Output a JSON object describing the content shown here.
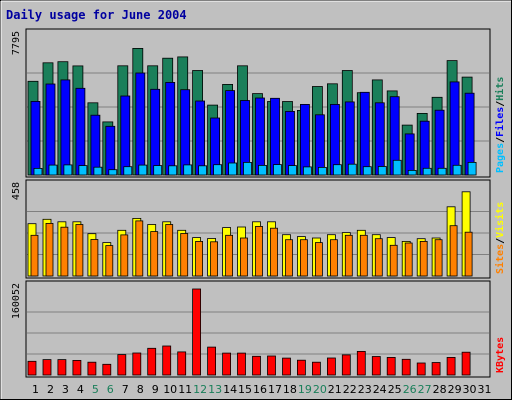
{
  "chart_data": {
    "type": "bar",
    "title": "Daily usage for June 2004",
    "x": [
      "1",
      "2",
      "3",
      "4",
      "5",
      "6",
      "7",
      "8",
      "9",
      "10",
      "11",
      "12",
      "13",
      "14",
      "15",
      "16",
      "17",
      "18",
      "19",
      "20",
      "21",
      "22",
      "23",
      "24",
      "25",
      "26",
      "27",
      "28",
      "29",
      "30",
      "31"
    ],
    "weekend_days": [
      "5",
      "6",
      "12",
      "13",
      "19",
      "20",
      "26",
      "27"
    ],
    "panels": [
      {
        "id": "top",
        "max_label": "7795",
        "ylim": [
          0,
          7795
        ],
        "series": [
          {
            "name": "Hits",
            "color": "#1a7f5a",
            "values": [
              5290,
              6340,
              6400,
              6160,
              4080,
              3000,
              6170,
              7150,
              6170,
              6600,
              6670,
              5900,
              3950,
              5120,
              6170,
              4600,
              4150,
              4150,
              3650,
              5000,
              5150,
              5900,
              4650,
              5370,
              4750,
              2820,
              3480,
              4390,
              6460,
              5530,
              0
            ]
          },
          {
            "name": "Files",
            "color": "#0000ff",
            "values": [
              4160,
              5140,
              5370,
              4900,
              3380,
              2750,
              4460,
              5760,
              4840,
              5230,
              4820,
              4180,
              3220,
              4770,
              4210,
              4350,
              4330,
              3590,
              3990,
              3400,
              3990,
              4130,
              4670,
              4080,
              4420,
              2320,
              3040,
              3660,
              5260,
              4620,
              0
            ]
          },
          {
            "name": "Pages",
            "color": "#00bfff",
            "values": [
              370,
              560,
              570,
              530,
              440,
              300,
              470,
              560,
              530,
              520,
              570,
              520,
              580,
              680,
              710,
              540,
              590,
              530,
              460,
              430,
              580,
              610,
              470,
              480,
              830,
              260,
              380,
              380,
              550,
              710,
              0
            ]
          }
        ]
      },
      {
        "id": "middle",
        "max_label": "458",
        "ylim": [
          0,
          458
        ],
        "series": [
          {
            "name": "Visits",
            "color": "#ffff00",
            "values": [
              272,
              295,
              282,
              282,
              220,
              174,
              238,
              300,
              268,
              282,
              238,
              200,
              195,
              252,
              255,
              282,
              282,
              215,
              205,
              198,
              215,
              226,
              238,
              215,
              200,
              180,
              194,
              198,
              360,
              438,
              0
            ]
          },
          {
            "name": "Sites",
            "color": "#ff8000",
            "values": [
              212,
              274,
              254,
              268,
              190,
              158,
              214,
              287,
              231,
              268,
              221,
              180,
              178,
              212,
              198,
              258,
              249,
              189,
              189,
              174,
              189,
              212,
              212,
              194,
              160,
              172,
              180,
              189,
              262,
              228,
              0
            ]
          }
        ]
      },
      {
        "id": "bottom",
        "max_label": "160052",
        "ylim": [
          0,
          160052
        ],
        "series": [
          {
            "name": "KBytes",
            "color": "#ff0000",
            "values": [
              25500,
              28700,
              28700,
              27200,
              23800,
              20000,
              37900,
              41000,
              49700,
              54000,
              43000,
              160052,
              52000,
              40800,
              40800,
              34800,
              35400,
              31500,
              27500,
              23800,
              31700,
              37500,
              44000,
              34500,
              32700,
              29200,
              22400,
              23300,
              32700,
              42400,
              0
            ]
          }
        ]
      }
    ]
  }
}
